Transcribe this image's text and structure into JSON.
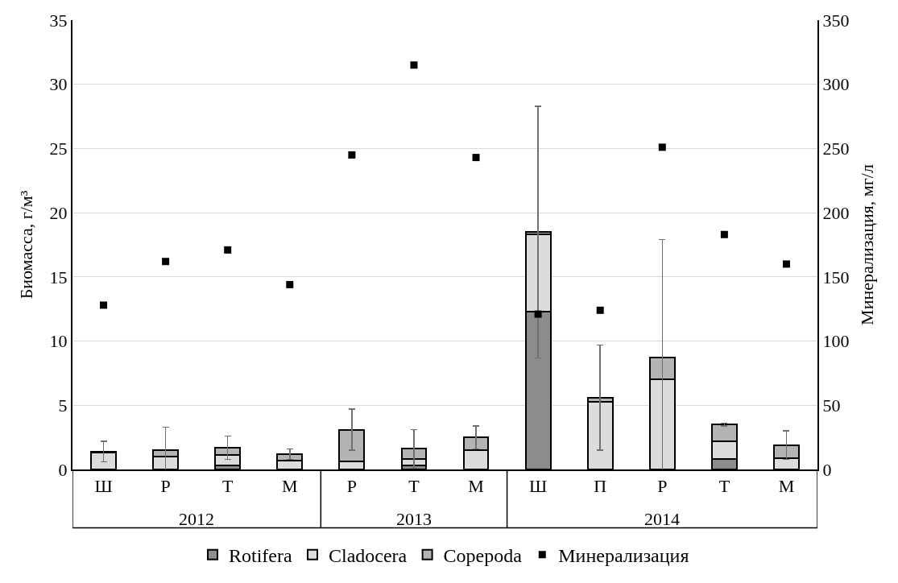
{
  "chart_data": {
    "type": "bar",
    "stacked": true,
    "categories": [
      "Ш",
      "Р",
      "Т",
      "М",
      "Р",
      "Т",
      "М",
      "Ш",
      "П",
      "Р",
      "Т",
      "М"
    ],
    "annotations": [
      "2012",
      "2013",
      "2014"
    ],
    "ylabel": "Биомасса, г/м³",
    "y2label": "Минерализация, мг/л",
    "ylim": [
      0,
      35
    ],
    "yticks": [
      0,
      5,
      10,
      15,
      20,
      25,
      30,
      35
    ],
    "y2lim": [
      0,
      350
    ],
    "y2ticks": [
      0,
      50,
      100,
      150,
      200,
      250,
      300,
      350
    ],
    "grid": "y",
    "legend": "bottom",
    "series": [
      {
        "name": "Rotifera",
        "color": "#8c8c8c",
        "values": [
          0,
          0,
          0.3,
          0,
          0,
          0.3,
          0,
          12.3,
          0,
          0,
          0.8,
          0
        ]
      },
      {
        "name": "Cladocera",
        "color": "#dcdcdc",
        "values": [
          1.3,
          1.0,
          0.8,
          0.7,
          0.6,
          0.5,
          1.5,
          6.0,
          5.3,
          7.0,
          1.4,
          0.9
        ]
      },
      {
        "name": "Copepoda",
        "color": "#b4b4b4",
        "values": [
          0.1,
          0.5,
          0.6,
          0.5,
          2.5,
          0.8,
          1.0,
          0.2,
          0.3,
          1.7,
          1.3,
          1.0
        ],
        "errors": [
          0.8,
          1.8,
          0.9,
          0.4,
          1.6,
          1.5,
          0.9,
          9.8,
          4.1,
          9.2,
          0.1,
          1.1
        ]
      },
      {
        "name": "Минерализация",
        "type": "scatter",
        "axis": "y2",
        "marker": "square",
        "color": "#000000",
        "values": [
          128,
          162,
          171,
          144,
          245,
          315,
          243,
          121,
          124,
          251,
          183,
          160
        ]
      }
    ]
  }
}
